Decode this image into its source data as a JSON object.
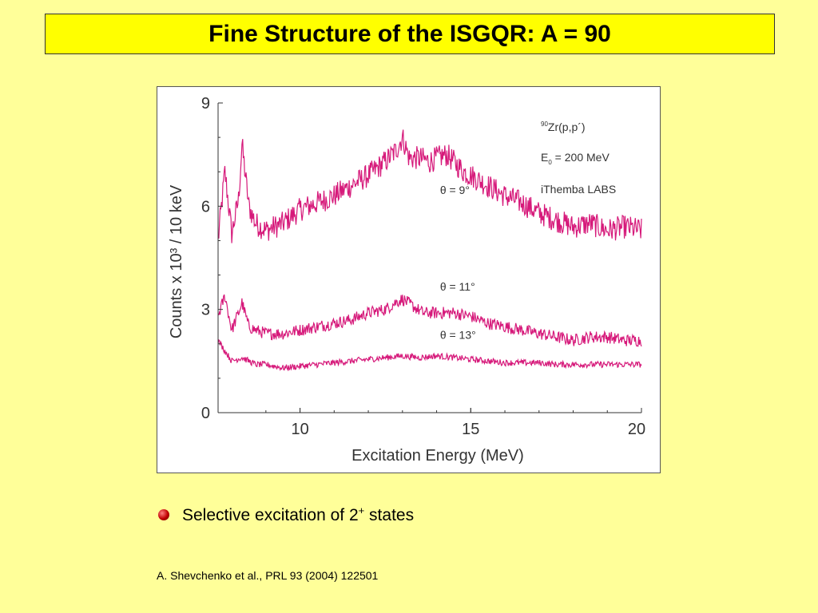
{
  "slide": {
    "title": "Fine Structure of the ISGQR: A = 90",
    "bullet": {
      "text": "Selective excitation of 2",
      "sup": "+",
      "tail": " states"
    },
    "citation": "A. Shevchenko et al., PRL 93 (2004) 122501"
  },
  "chart_data": {
    "type": "line",
    "title": "",
    "xlabel": "Excitation Energy (MeV)",
    "ylabel": "Counts x 10³ / 10 keV",
    "xlim": [
      7.6,
      20
    ],
    "ylim": [
      0,
      9
    ],
    "xticks": [
      10,
      15,
      20
    ],
    "yticks": [
      0,
      3,
      6,
      9
    ],
    "grid": false,
    "line_color": "#d6197a",
    "annotations": {
      "reaction_pre": "90",
      "reaction": "Zr(p,p´)",
      "energy_pre": "E",
      "energy_sub": "0",
      "energy_post": " = 200 MeV",
      "facility": "iThemba LABS"
    },
    "series": [
      {
        "name": "θ = 9°",
        "x": [
          7.6,
          7.8,
          8.0,
          8.2,
          8.3,
          8.5,
          8.7,
          9.0,
          9.5,
          10.0,
          10.5,
          11.0,
          11.5,
          12.0,
          12.5,
          12.8,
          13.0,
          13.2,
          13.5,
          13.8,
          14.0,
          14.3,
          14.5,
          14.8,
          15.0,
          15.5,
          16.0,
          16.5,
          17.0,
          17.5,
          18.0,
          18.5,
          19.0,
          19.5,
          20.0
        ],
        "values": [
          5.0,
          7.0,
          5.2,
          6.2,
          7.8,
          6.0,
          5.5,
          5.3,
          5.5,
          5.9,
          6.1,
          6.3,
          6.6,
          6.9,
          7.3,
          7.6,
          8.0,
          7.4,
          7.4,
          7.3,
          7.4,
          7.5,
          7.3,
          7.0,
          6.9,
          6.6,
          6.3,
          6.1,
          5.8,
          5.6,
          5.4,
          5.5,
          5.3,
          5.4,
          5.3
        ]
      },
      {
        "name": "θ = 11°",
        "x": [
          7.6,
          7.8,
          8.0,
          8.2,
          8.3,
          8.5,
          8.7,
          9.0,
          9.5,
          10.0,
          10.5,
          11.0,
          11.5,
          12.0,
          12.5,
          12.8,
          13.0,
          13.3,
          13.6,
          14.0,
          14.5,
          15.0,
          15.5,
          16.0,
          16.5,
          17.0,
          17.5,
          18.0,
          18.5,
          19.0,
          19.5,
          20.0
        ],
        "values": [
          2.8,
          3.4,
          2.4,
          2.9,
          3.2,
          2.5,
          2.4,
          2.3,
          2.3,
          2.4,
          2.5,
          2.6,
          2.7,
          2.9,
          3.0,
          3.2,
          3.3,
          3.1,
          2.9,
          2.9,
          2.9,
          2.8,
          2.6,
          2.5,
          2.4,
          2.3,
          2.2,
          2.1,
          2.2,
          2.2,
          2.1,
          2.1
        ]
      },
      {
        "name": "θ = 13°",
        "x": [
          7.6,
          7.8,
          8.0,
          8.3,
          8.7,
          9.0,
          9.5,
          10.0,
          10.5,
          11.0,
          11.5,
          12.0,
          12.5,
          13.0,
          13.5,
          14.0,
          14.5,
          15.0,
          15.5,
          16.0,
          16.5,
          17.0,
          17.5,
          18.0,
          18.5,
          19.0,
          19.5,
          20.0
        ],
        "values": [
          2.1,
          1.8,
          1.5,
          1.6,
          1.4,
          1.4,
          1.3,
          1.35,
          1.4,
          1.45,
          1.5,
          1.55,
          1.6,
          1.65,
          1.6,
          1.65,
          1.6,
          1.55,
          1.5,
          1.45,
          1.45,
          1.45,
          1.4,
          1.4,
          1.4,
          1.4,
          1.4,
          1.4
        ]
      }
    ],
    "series_labels": [
      {
        "text": "θ = 9°",
        "x": 14.1,
        "y": 6.35
      },
      {
        "text": "θ = 11°",
        "x": 14.1,
        "y": 3.55
      },
      {
        "text": "θ = 13°",
        "x": 14.1,
        "y": 2.15
      }
    ]
  }
}
